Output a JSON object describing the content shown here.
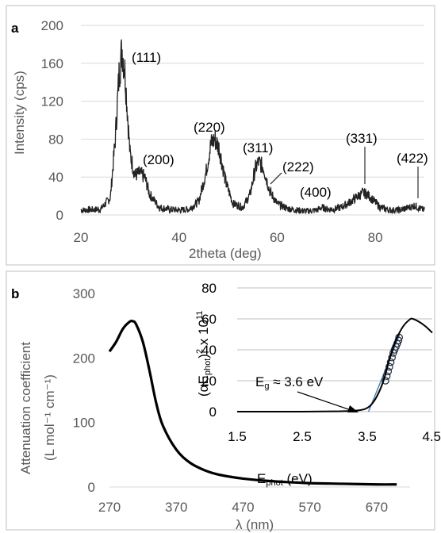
{
  "chart_data": [
    {
      "panel": "a",
      "type": "line",
      "xlabel": "2theta (deg)",
      "ylabel": "Intensity (cps)",
      "xlim": [
        20,
        90
      ],
      "ylim": [
        0,
        200
      ],
      "xticks": [
        "20",
        "40",
        "60",
        "80"
      ],
      "yticks": [
        "0",
        "40",
        "80",
        "120",
        "160",
        "200"
      ],
      "grid": "horizontal",
      "series": [
        {
          "x": [
            20,
            24,
            26,
            27,
            27.8,
            28.4,
            29,
            30,
            31,
            32,
            33,
            34,
            36,
            38,
            40,
            42,
            44,
            45.5,
            46.5,
            47.3,
            48.2,
            49.5,
            51,
            53,
            54.5,
            55.5,
            56.2,
            57.2,
            58.5,
            60,
            62,
            64,
            66,
            68,
            69.2,
            70.2,
            71.5,
            73,
            75,
            76.5,
            77.5,
            78.3,
            79.5,
            81,
            83,
            85,
            87,
            88,
            89,
            90
          ],
          "y": [
            5,
            6,
            18,
            80,
            150,
            175,
            150,
            65,
            42,
            44,
            40,
            22,
            8,
            6,
            5,
            6,
            14,
            45,
            75,
            80,
            70,
            35,
            12,
            8,
            22,
            48,
            56,
            50,
            25,
            12,
            7,
            5,
            4,
            5,
            8,
            6,
            6,
            8,
            14,
            20,
            23,
            22,
            16,
            8,
            5,
            5,
            8,
            10,
            7,
            5
          ]
        }
      ],
      "annotations": [
        "(111)",
        "(200)",
        "(220)",
        "(311)",
        "(222)",
        "(400)",
        "(331)",
        "(422)"
      ]
    },
    {
      "panel": "b",
      "type": "line",
      "xlabel": "λ (nm)",
      "ylabel_line1": "Attenuation coefficient",
      "ylabel_line2": "(L mol⁻¹ cm⁻¹)",
      "xlim": [
        270,
        720
      ],
      "ylim": [
        0,
        300
      ],
      "xticks": [
        "270",
        "370",
        "470",
        "570",
        "670"
      ],
      "yticks": [
        "0",
        "100",
        "200",
        "300"
      ],
      "series": [
        {
          "x": [
            270,
            280,
            290,
            300,
            305,
            310,
            320,
            330,
            340,
            350,
            370,
            390,
            410,
            430,
            450,
            470,
            500,
            530,
            570,
            620,
            670,
            700
          ],
          "y": [
            210,
            225,
            245,
            256,
            257,
            252,
            225,
            180,
            130,
            95,
            58,
            38,
            27,
            20,
            16,
            13,
            10,
            8,
            6,
            5,
            4,
            4
          ]
        }
      ]
    },
    {
      "panel": "b-inset",
      "type": "line",
      "xlabel": "Ephot (eV)",
      "ylabel": "(αEphot)² x 10¹¹",
      "xlim": [
        1.5,
        4.5
      ],
      "ylim": [
        0,
        80
      ],
      "xticks": [
        "1.5",
        "2.5",
        "3.5",
        "4.5"
      ],
      "yticks": [
        "0",
        "20",
        "40",
        "60",
        "80"
      ],
      "grid": "horizontal",
      "series": [
        {
          "name": "curve",
          "x": [
            1.5,
            2.5,
            3.0,
            3.3,
            3.45,
            3.55,
            3.65,
            3.75,
            3.85,
            3.95,
            4.05,
            4.15,
            4.2,
            4.3,
            4.4,
            4.5
          ],
          "y": [
            0,
            0,
            0.2,
            0.6,
            1.5,
            4,
            10,
            20,
            35,
            47,
            55,
            59.5,
            60,
            58,
            55,
            51
          ]
        },
        {
          "name": "fit",
          "x": [
            3.52,
            4.0
          ],
          "y": [
            0,
            50
          ]
        },
        {
          "name": "points",
          "x": [
            3.78,
            3.8,
            3.82,
            3.84,
            3.86,
            3.88,
            3.9,
            3.92,
            3.94,
            3.96,
            3.98,
            3.99
          ],
          "y": [
            20,
            23,
            26,
            29,
            32,
            35,
            38,
            40,
            42,
            44,
            46,
            48
          ]
        }
      ],
      "annotation": "Eg ≈ 3.6 eV"
    }
  ]
}
